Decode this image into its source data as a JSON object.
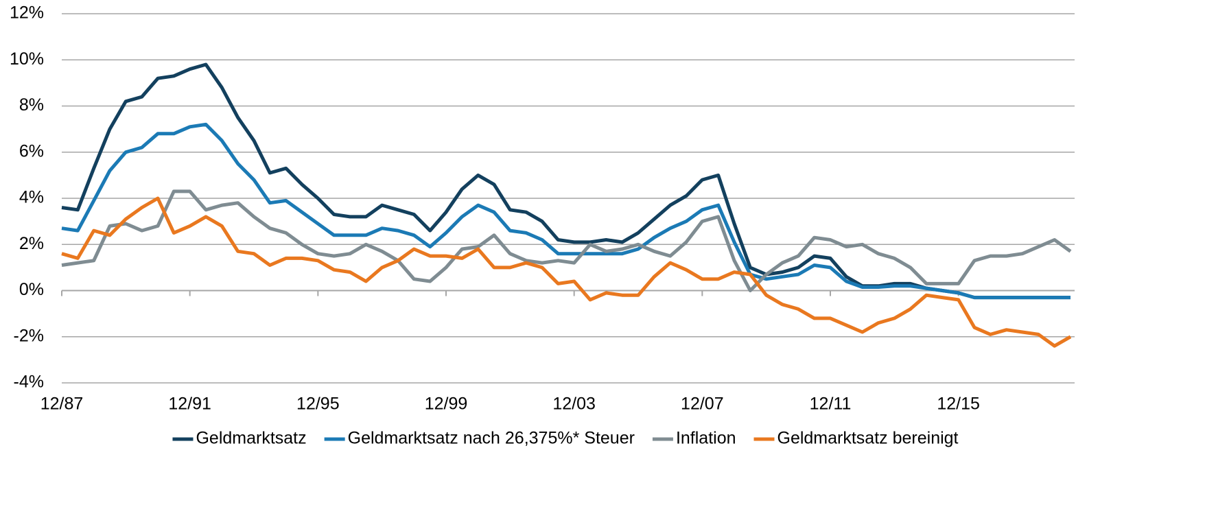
{
  "chart_data": {
    "type": "line",
    "categories": [
      "12/87",
      null,
      null,
      null,
      null,
      null,
      null,
      null,
      "12/91",
      null,
      null,
      null,
      null,
      null,
      null,
      null,
      "12/95",
      null,
      null,
      null,
      null,
      null,
      null,
      null,
      "12/99",
      null,
      null,
      null,
      null,
      null,
      null,
      null,
      "12/03",
      null,
      null,
      null,
      null,
      null,
      null,
      null,
      "12/07",
      null,
      null,
      null,
      null,
      null,
      null,
      null,
      "12/11",
      null,
      null,
      null,
      null,
      null,
      null,
      null,
      "12/15",
      null,
      null,
      null,
      null,
      null,
      null,
      null
    ],
    "series": [
      {
        "name": "Geldmarktsatz",
        "color": "#13405e",
        "values": [
          3.6,
          3.5,
          5.3,
          7.0,
          8.2,
          8.4,
          9.2,
          9.3,
          9.6,
          9.8,
          8.8,
          7.5,
          6.5,
          5.1,
          5.3,
          4.6,
          4.0,
          3.3,
          3.2,
          3.2,
          3.7,
          3.5,
          3.3,
          2.6,
          3.4,
          4.4,
          5.0,
          4.6,
          3.5,
          3.4,
          3.0,
          2.2,
          2.1,
          2.1,
          2.2,
          2.1,
          2.5,
          3.1,
          3.7,
          4.1,
          4.8,
          5.0,
          2.9,
          1.0,
          0.7,
          0.8,
          1.0,
          1.5,
          1.4,
          0.6,
          0.2,
          0.2,
          0.3,
          0.3,
          0.1,
          0.0,
          -0.1,
          -0.3,
          -0.3,
          -0.3,
          -0.3,
          -0.3,
          -0.3,
          -0.3
        ]
      },
      {
        "name": "Geldmarktsatz nach 26,375%* Steuer",
        "color": "#1b7ab5",
        "values": [
          2.7,
          2.6,
          3.9,
          5.2,
          6.0,
          6.2,
          6.8,
          6.8,
          7.1,
          7.2,
          6.5,
          5.5,
          4.8,
          3.8,
          3.9,
          3.4,
          2.9,
          2.4,
          2.4,
          2.4,
          2.7,
          2.6,
          2.4,
          1.9,
          2.5,
          3.2,
          3.7,
          3.4,
          2.6,
          2.5,
          2.2,
          1.6,
          1.6,
          1.6,
          1.6,
          1.6,
          1.8,
          2.3,
          2.7,
          3.0,
          3.5,
          3.7,
          2.1,
          0.7,
          0.5,
          0.6,
          0.7,
          1.1,
          1.0,
          0.4,
          0.15,
          0.15,
          0.2,
          0.2,
          0.1,
          0.0,
          -0.1,
          -0.3,
          -0.3,
          -0.3,
          -0.3,
          -0.3,
          -0.3,
          -0.3
        ]
      },
      {
        "name": "Inflation",
        "color": "#7f8c92",
        "values": [
          1.1,
          1.2,
          1.3,
          2.8,
          2.9,
          2.6,
          2.8,
          4.3,
          4.3,
          3.5,
          3.7,
          3.8,
          3.2,
          2.7,
          2.5,
          2.0,
          1.6,
          1.5,
          1.6,
          2.0,
          1.7,
          1.3,
          0.5,
          0.4,
          1.0,
          1.8,
          1.9,
          2.4,
          1.6,
          1.3,
          1.2,
          1.3,
          1.2,
          2.0,
          1.7,
          1.8,
          2.0,
          1.7,
          1.5,
          2.1,
          3.0,
          3.2,
          1.3,
          0.0,
          0.7,
          1.2,
          1.5,
          2.3,
          2.2,
          1.9,
          2.0,
          1.6,
          1.4,
          1.0,
          0.3,
          0.3,
          0.3,
          1.3,
          1.5,
          1.5,
          1.6,
          1.9,
          2.2,
          1.7
        ]
      },
      {
        "name": "Geldmarktsatz bereinigt",
        "color": "#e9781f",
        "values": [
          1.6,
          1.4,
          2.6,
          2.4,
          3.1,
          3.6,
          4.0,
          2.5,
          2.8,
          3.2,
          2.8,
          1.7,
          1.6,
          1.1,
          1.4,
          1.4,
          1.3,
          0.9,
          0.8,
          0.4,
          1.0,
          1.3,
          1.8,
          1.5,
          1.5,
          1.4,
          1.8,
          1.0,
          1.0,
          1.2,
          1.0,
          0.3,
          0.4,
          -0.4,
          -0.1,
          -0.2,
          -0.2,
          0.6,
          1.2,
          0.9,
          0.5,
          0.5,
          0.8,
          0.7,
          -0.2,
          -0.6,
          -0.8,
          -1.2,
          -1.2,
          -1.5,
          -1.8,
          -1.4,
          -1.2,
          -0.8,
          -0.2,
          -0.3,
          -0.4,
          -1.6,
          -1.9,
          -1.7,
          -1.8,
          -1.9,
          -2.4,
          -2.0
        ]
      }
    ],
    "ylim": [
      -4,
      12
    ],
    "yticks": [
      {
        "value": -4,
        "label": "-4%"
      },
      {
        "value": -2,
        "label": "-2%"
      },
      {
        "value": 0,
        "label": "0%"
      },
      {
        "value": 2,
        "label": "2%"
      },
      {
        "value": 4,
        "label": "4%"
      },
      {
        "value": 6,
        "label": "6%"
      },
      {
        "value": 8,
        "label": "8%"
      },
      {
        "value": 10,
        "label": "10%"
      },
      {
        "value": 12,
        "label": "12%"
      }
    ],
    "grid": true,
    "legend": "bottom"
  }
}
